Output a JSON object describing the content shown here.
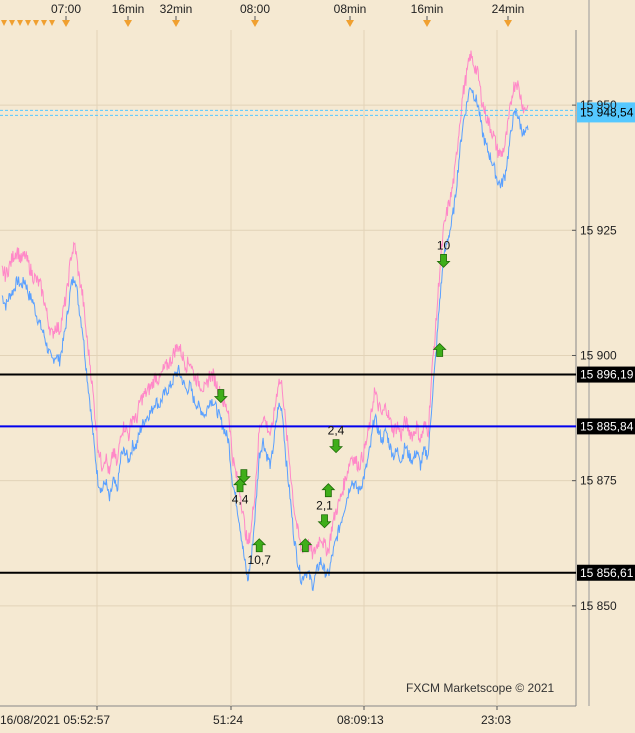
{
  "chart_data": {
    "type": "line",
    "title": "",
    "xlabel": "",
    "ylabel": "",
    "ylim": [
      15830,
      15965
    ],
    "y_ticks": [
      {
        "value": 15850,
        "label": "15 850"
      },
      {
        "value": 15875,
        "label": "15 875"
      },
      {
        "value": 15900,
        "label": "15 900"
      },
      {
        "value": 15925,
        "label": "15 925"
      },
      {
        "value": 15950,
        "label": "15 950"
      }
    ],
    "top_time_labels": [
      "07:00",
      "16min",
      "32min",
      "08:00",
      "08min",
      "16min",
      "24min"
    ],
    "bottom_time_labels": [
      "16/08/2021 05:52:57",
      "51:24",
      "08:09:13",
      "23:03"
    ],
    "watermark": "FXCM Marketscope © 2021",
    "series": [
      {
        "color": "#ff88c8",
        "values": [
          15917,
          15916,
          15918,
          15920,
          15921,
          15919,
          15920,
          15918,
          15916,
          15915,
          15914,
          15911,
          15907,
          15904,
          15906,
          15905,
          15909,
          15913,
          15920,
          15922,
          15916,
          15912,
          15904,
          15898,
          15890,
          15882,
          15878,
          15880,
          15876,
          15881,
          15878,
          15885,
          15886,
          15884,
          15888,
          15887,
          15891,
          15892,
          15893,
          15894,
          15896,
          15895,
          15897,
          15898,
          15899,
          15901,
          15902,
          15900,
          15898,
          15899,
          15896,
          15895,
          15894,
          15893,
          15896,
          15896,
          15894,
          15892,
          15890,
          15889,
          15880,
          15876,
          15873,
          15867,
          15862,
          15866,
          15874,
          15885,
          15888,
          15886,
          15884,
          15889,
          15895,
          15894,
          15885,
          15878,
          15870,
          15865,
          15861,
          15863,
          15862,
          15860,
          15862,
          15864,
          15862,
          15861,
          15866,
          15869,
          15871,
          15874,
          15877,
          15880,
          15879,
          15878,
          15880,
          15883,
          15887,
          15893,
          15890,
          15888,
          15890,
          15887,
          15885,
          15886,
          15884,
          15887,
          15885,
          15884,
          15886,
          15883,
          15886,
          15885,
          15897,
          15906,
          15917,
          15925,
          15929,
          15932,
          15937,
          15945,
          15952,
          15956,
          15960,
          15958,
          15956,
          15951,
          15948,
          15946,
          15944,
          15941,
          15940,
          15942,
          15947,
          15953,
          15955,
          15952,
          15949,
          15950
        ],
        "low_values": [
          15912,
          15910,
          15912,
          15913,
          15915,
          15914,
          15915,
          15912,
          15911,
          15908,
          15906,
          15904,
          15901,
          15899,
          15900,
          15899,
          15903,
          15908,
          15914,
          15916,
          15910,
          15905,
          15897,
          15890,
          15882,
          15875,
          15873,
          15875,
          15871,
          15875,
          15873,
          15880,
          15881,
          15879,
          15882,
          15882,
          15885,
          15887,
          15888,
          15889,
          15891,
          15890,
          15892,
          15893,
          15894,
          15896,
          15897,
          15895,
          15893,
          15894,
          15891,
          15890,
          15889,
          15888,
          15891,
          15891,
          15889,
          15887,
          15885,
          15883,
          15875,
          15871,
          15866,
          15860,
          15855,
          15860,
          15869,
          15880,
          15883,
          15880,
          15878,
          15884,
          15890,
          15889,
          15879,
          15872,
          15864,
          15859,
          15855,
          15857,
          15856,
          15854,
          15857,
          15859,
          15857,
          15856,
          15860,
          15863,
          15866,
          15869,
          15872,
          15875,
          15874,
          15873,
          15875,
          15878,
          15882,
          15888,
          15885,
          15883,
          15885,
          15882,
          15880,
          15881,
          15879,
          15882,
          15880,
          15879,
          15881,
          15878,
          15881,
          15880,
          15891,
          15900,
          15911,
          15919,
          15923,
          15926,
          15931,
          15939,
          15946,
          15950,
          15954,
          15952,
          15950,
          15945,
          15942,
          15940,
          15938,
          15935,
          15934,
          15936,
          15941,
          15947,
          15949,
          15946,
          15944,
          15945
        ]
      }
    ],
    "horizontal_levels": [
      {
        "value": 15896.19,
        "label": "15 896,19",
        "color": "#000000"
      },
      {
        "value": 15885.84,
        "label": "15 885,84",
        "color": "#0000ee"
      },
      {
        "value": 15856.61,
        "label": "15 856,61",
        "color": "#000000"
      }
    ],
    "current_price": {
      "value": 15948.54,
      "label": "15 948,54",
      "color": "#55c8ff"
    },
    "signals": [
      {
        "i": 57,
        "value": 15892,
        "dir": "down",
        "label": ""
      },
      {
        "i": 63,
        "value": 15876,
        "dir": "down",
        "label": ""
      },
      {
        "i": 62,
        "value": 15874,
        "dir": "up",
        "label": "4,4"
      },
      {
        "i": 67,
        "value": 15862,
        "dir": "up",
        "label": "10,7"
      },
      {
        "i": 79,
        "value": 15862,
        "dir": "up",
        "label": ""
      },
      {
        "i": 87,
        "value": 15882,
        "dir": "down",
        "label": "2,4"
      },
      {
        "i": 85,
        "value": 15873,
        "dir": "up",
        "label": ""
      },
      {
        "i": 84,
        "value": 15867,
        "dir": "down",
        "label": "2,1"
      },
      {
        "i": 114,
        "value": 15901,
        "dir": "up",
        "label": ""
      },
      {
        "i": 115,
        "value": 15919,
        "dir": "down",
        "label": "10"
      }
    ]
  }
}
